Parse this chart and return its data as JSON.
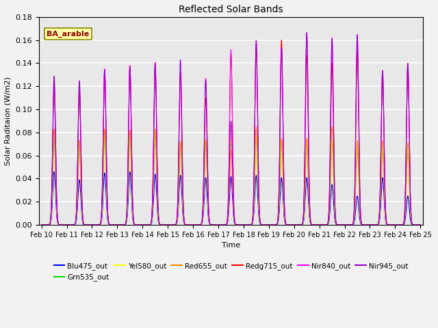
{
  "title": "Reflected Solar Bands",
  "xlabel": "Time",
  "ylabel": "Solar Raditaion (W/m2)",
  "ylim": [
    0,
    0.18
  ],
  "yticks": [
    0.0,
    0.02,
    0.04,
    0.06,
    0.08,
    0.1,
    0.12,
    0.14,
    0.16,
    0.18
  ],
  "xtick_labels": [
    "Feb 10",
    "Feb 11",
    "Feb 12",
    "Feb 13",
    "Feb 14",
    "Feb 15",
    "Feb 16",
    "Feb 17",
    "Feb 18",
    "Feb 19",
    "Feb 20",
    "Feb 21",
    "Feb 22",
    "Feb 23",
    "Feb 24",
    "Feb 25"
  ],
  "annotation_text": "BA_arable",
  "annotation_color": "#8B0000",
  "annotation_bg": "#FFFFAA",
  "series_order": [
    "Blu475_out",
    "Grn535_out",
    "Yel580_out",
    "Red655_out",
    "Redg715_out",
    "Nir840_out",
    "Nir945_out"
  ],
  "series_colors": [
    "#0000FF",
    "#00DD00",
    "#FFFF00",
    "#FF8800",
    "#FF0000",
    "#FF00FF",
    "#9900CC"
  ],
  "background_color": "#E8E8E8",
  "grid_color": "#FFFFFF",
  "n_days": 15,
  "pts_per_day": 288,
  "day_peaks_blu": [
    0.046,
    0.039,
    0.045,
    0.046,
    0.044,
    0.043,
    0.041,
    0.042,
    0.043,
    0.041,
    0.041,
    0.035,
    0.025,
    0.041,
    0.025
  ],
  "day_peaks_grn": [
    0.075,
    0.068,
    0.08,
    0.078,
    0.079,
    0.07,
    0.072,
    0.073,
    0.075,
    0.073,
    0.072,
    0.072,
    0.07,
    0.07,
    0.068
  ],
  "day_peaks_yel": [
    0.082,
    0.072,
    0.082,
    0.081,
    0.082,
    0.072,
    0.073,
    0.074,
    0.077,
    0.074,
    0.074,
    0.074,
    0.072,
    0.072,
    0.07
  ],
  "day_peaks_red": [
    0.083,
    0.073,
    0.083,
    0.082,
    0.083,
    0.073,
    0.074,
    0.065,
    0.085,
    0.075,
    0.075,
    0.085,
    0.073,
    0.073,
    0.071
  ],
  "day_peaks_redg": [
    0.12,
    0.116,
    0.135,
    0.138,
    0.14,
    0.132,
    0.11,
    0.148,
    0.152,
    0.16,
    0.147,
    0.14,
    0.15,
    0.133,
    0.14
  ],
  "day_peaks_nir840": [
    0.129,
    0.125,
    0.135,
    0.138,
    0.141,
    0.132,
    0.127,
    0.152,
    0.16,
    0.154,
    0.167,
    0.162,
    0.165,
    0.134,
    0.14
  ],
  "day_peaks_nir945": [
    0.128,
    0.124,
    0.134,
    0.137,
    0.14,
    0.143,
    0.126,
    0.09,
    0.159,
    0.153,
    0.166,
    0.161,
    0.164,
    0.133,
    0.139
  ]
}
